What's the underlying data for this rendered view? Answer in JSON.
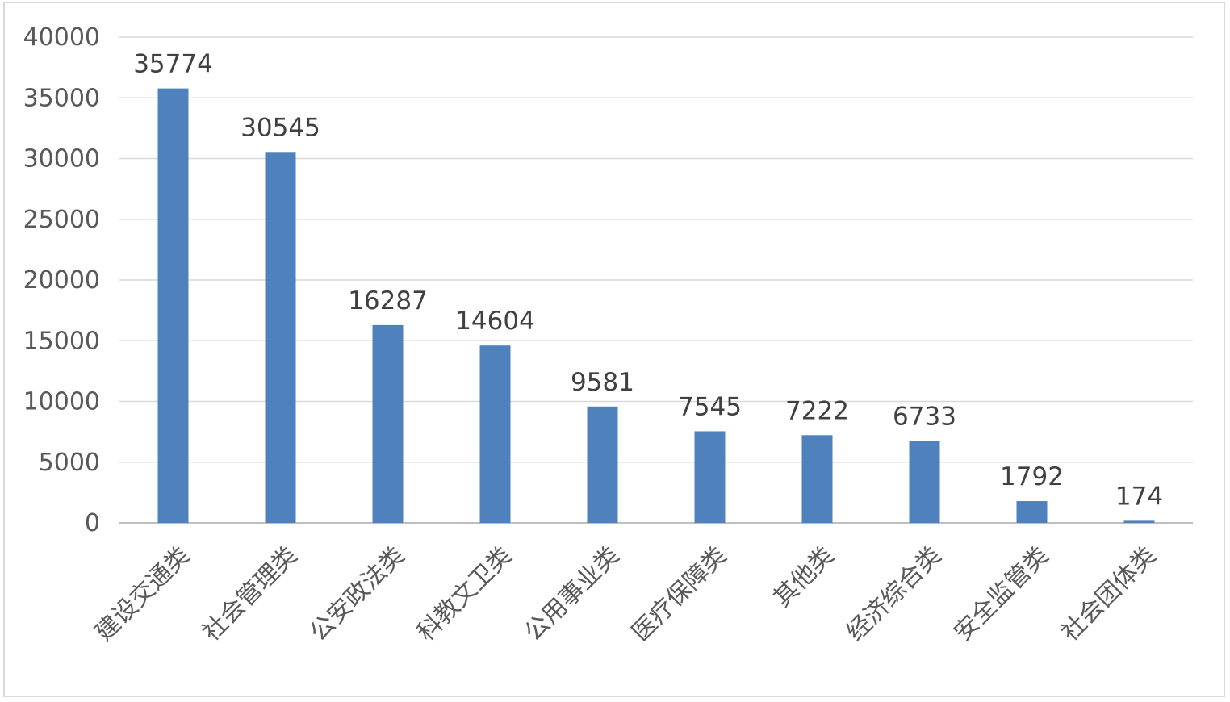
{
  "chart_data": {
    "type": "bar",
    "categories": [
      "建设交通类",
      "社会管理类",
      "公安政法类",
      "科教文卫类",
      "公用事业类",
      "医疗保障类",
      "其他类",
      "经济综合类",
      "安全监管类",
      "社会团体类"
    ],
    "values": [
      35774,
      30545,
      16287,
      14604,
      9581,
      7545,
      7222,
      6733,
      1792,
      174
    ],
    "data_labels": [
      "35774",
      "30545",
      "16287",
      "14604",
      "9581",
      "7545",
      "7222",
      "6733",
      "1792",
      "174"
    ],
    "y_ticks": [
      "0",
      "5000",
      "10000",
      "15000",
      "20000",
      "25000",
      "30000",
      "35000",
      "40000"
    ],
    "ylim": [
      0,
      40000
    ],
    "grid": true,
    "legend": "none",
    "bar_color": "#4f81bd"
  }
}
